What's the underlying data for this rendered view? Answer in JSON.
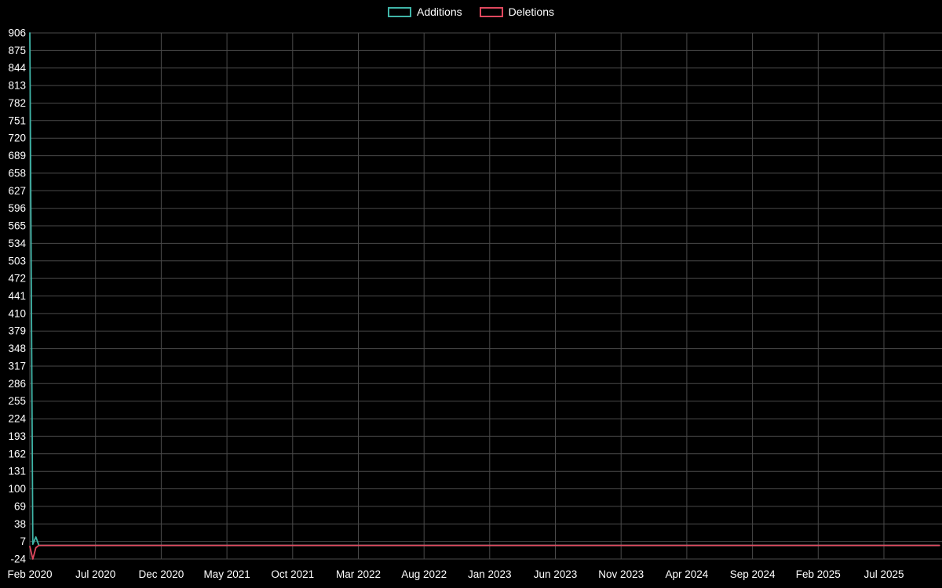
{
  "legend": {
    "items": [
      {
        "label": "Additions",
        "color": "#40b5a8"
      },
      {
        "label": "Deletions",
        "color": "#e0485e"
      }
    ]
  },
  "chart_data": {
    "type": "line",
    "title": "",
    "xlabel": "",
    "ylabel": "",
    "background_color": "#000000",
    "grid_color": "#4a4a4a",
    "text_color": "#ffffff",
    "grid": true,
    "legend_position": "top-center",
    "ylim": [
      -24,
      906
    ],
    "y_ticks": [
      906,
      875,
      844,
      813,
      782,
      751,
      720,
      689,
      658,
      627,
      596,
      565,
      534,
      503,
      472,
      441,
      410,
      379,
      348,
      317,
      286,
      255,
      224,
      193,
      162,
      131,
      100,
      69,
      38,
      7,
      -24
    ],
    "x_unit": "weeks since Feb 2020",
    "x_tick_labels": [
      {
        "label": "Feb 2020",
        "month": 0
      },
      {
        "label": "Jul 2020",
        "month": 5
      },
      {
        "label": "Dec 2020",
        "month": 10
      },
      {
        "label": "May 2021",
        "month": 15
      },
      {
        "label": "Oct 2021",
        "month": 20
      },
      {
        "label": "Mar 2022",
        "month": 25
      },
      {
        "label": "Aug 2022",
        "month": 30
      },
      {
        "label": "Jan 2023",
        "month": 35
      },
      {
        "label": "Jun 2023",
        "month": 40
      },
      {
        "label": "Nov 2023",
        "month": 45
      },
      {
        "label": "Apr 2024",
        "month": 50
      },
      {
        "label": "Sep 2024",
        "month": 55
      },
      {
        "label": "Feb 2025",
        "month": 60
      },
      {
        "label": "Jul 2025",
        "month": 65
      }
    ],
    "series": [
      {
        "name": "Additions",
        "color": "#40b5a8",
        "points": [
          [
            0,
            906
          ],
          [
            1,
            2
          ],
          [
            2,
            15
          ],
          [
            3,
            0
          ],
          [
            301,
            0
          ]
        ]
      },
      {
        "name": "Deletions",
        "color": "#e0485e",
        "points": [
          [
            0,
            -2
          ],
          [
            1,
            -24
          ],
          [
            2,
            -4
          ],
          [
            3,
            0
          ],
          [
            301,
            0
          ]
        ]
      }
    ]
  }
}
